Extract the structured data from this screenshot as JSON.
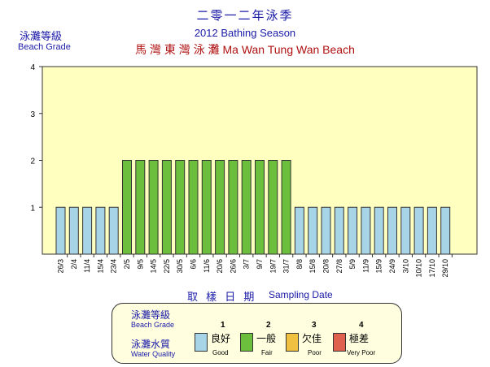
{
  "title": {
    "zh": "二零一二年泳季",
    "en": "2012 Bathing Season",
    "beach": "馬 灣 東 灣 泳 灘   Ma Wan Tung Wan Beach"
  },
  "colors": {
    "plot_bg": "#ffffc0",
    "good": "#a8d4e8",
    "fair": "#6cbf3c",
    "poor": "#f0c040",
    "very_poor": "#e06050"
  },
  "legend": {
    "grade_zh": "泳灘等級",
    "grade_en": "Beach Grade",
    "quality_zh": "泳灘水質",
    "quality_en": "Water Quality",
    "items": [
      {
        "num": "1",
        "zh": "良好",
        "en": "Good"
      },
      {
        "num": "2",
        "zh": "一般",
        "en": "Fair"
      },
      {
        "num": "3",
        "zh": "欠佳",
        "en": "Poor"
      },
      {
        "num": "4",
        "zh": "極差",
        "en": "Very Poor"
      }
    ]
  },
  "chart_data": {
    "type": "bar",
    "title": "2012 Bathing Season",
    "ylabel_zh": "泳灘等級",
    "ylabel_en": "Beach Grade",
    "xlabel_zh": "取 樣 日 期",
    "xlabel_en": "Sampling Date",
    "ylim": [
      0,
      4
    ],
    "yticks": [
      "1",
      "2",
      "3",
      "4"
    ],
    "categories": [
      "26/3",
      "2/4",
      "11/4",
      "15/4",
      "23/4",
      "2/5",
      "9/5",
      "14/5",
      "22/5",
      "30/5",
      "6/6",
      "11/6",
      "20/6",
      "26/6",
      "3/7",
      "9/7",
      "19/7",
      "31/7",
      "8/8",
      "15/8",
      "20/8",
      "27/8",
      "5/9",
      "11/9",
      "15/9",
      "24/9",
      "3/10",
      "10/10",
      "17/10",
      "29/10"
    ],
    "values": [
      1,
      1,
      1,
      1,
      1,
      2,
      2,
      2,
      2,
      2,
      2,
      2,
      2,
      2,
      2,
      2,
      2,
      2,
      1,
      1,
      1,
      1,
      1,
      1,
      1,
      1,
      1,
      1,
      1,
      1
    ],
    "grid": false
  }
}
